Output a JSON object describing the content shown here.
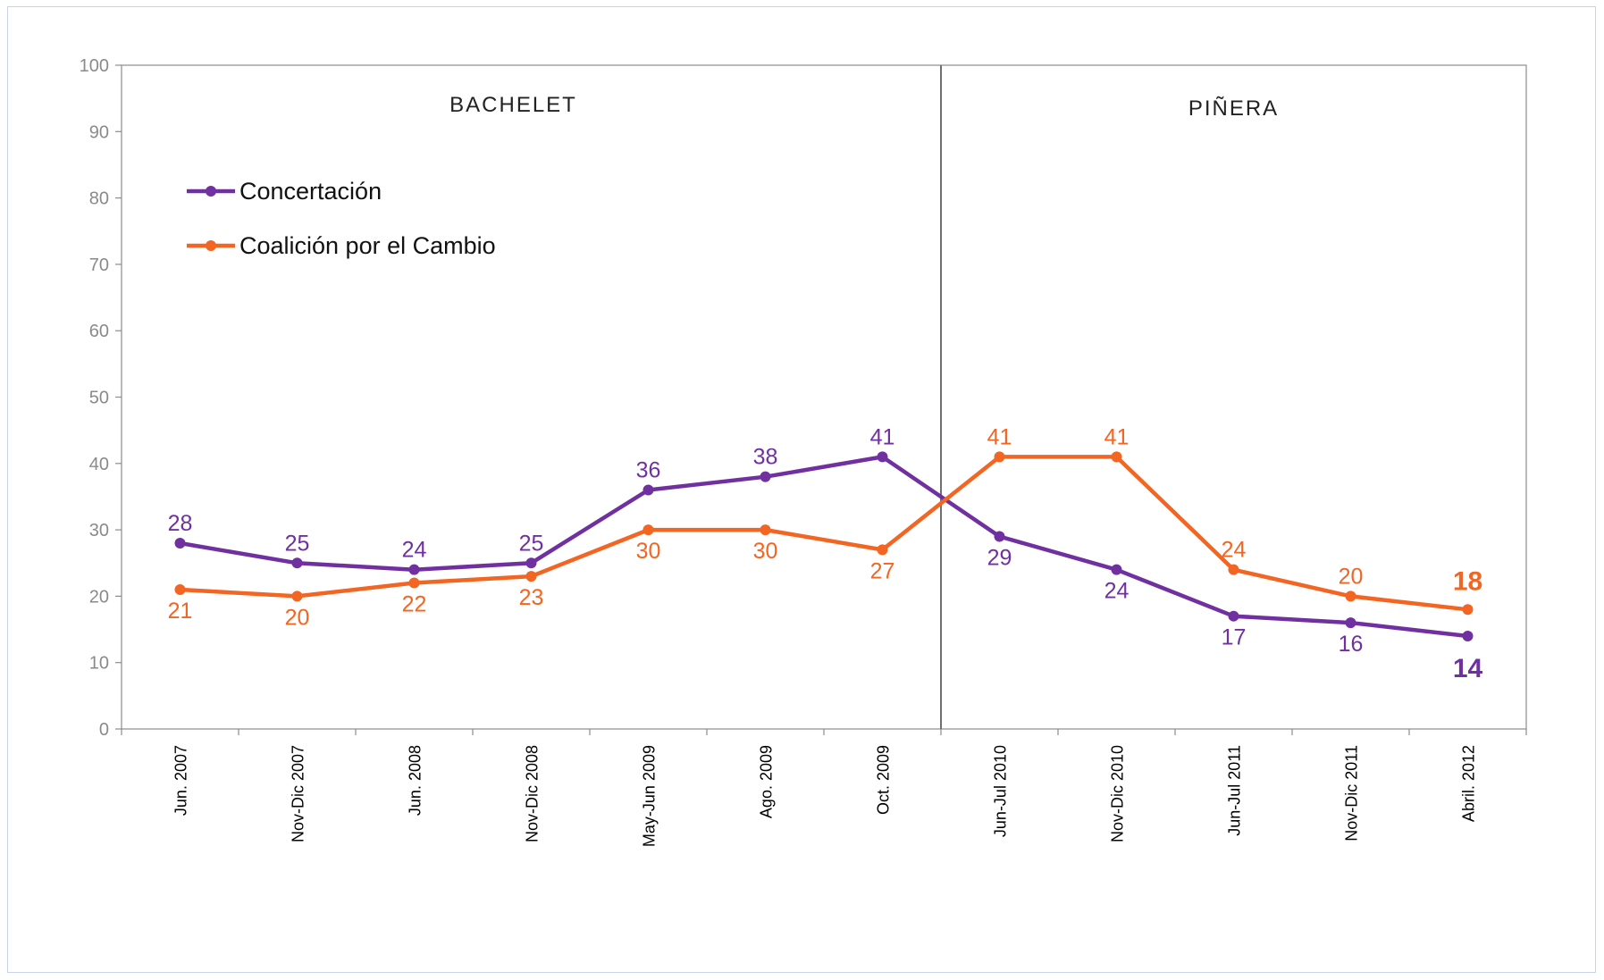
{
  "chart_data": {
    "type": "line",
    "title": "",
    "xlabel": "",
    "ylabel": "",
    "ylim": [
      0,
      100
    ],
    "yticks": [
      0,
      10,
      20,
      30,
      40,
      50,
      60,
      70,
      80,
      90,
      100
    ],
    "grid": false,
    "legend_position": "top-left",
    "categories": [
      "Jun. 2007",
      "Nov-Dic 2007",
      "Jun. 2008",
      "Nov-Dic 2008",
      "May-Jun 2009",
      "Ago. 2009",
      "Oct. 2009",
      "Jun-Jul 2010",
      "Nov-Dic 2010",
      "Jun-Jul 2011",
      "Nov-Dic 2011",
      "Abril. 2012"
    ],
    "periods": [
      {
        "label": "BACHELET",
        "from": "Jun. 2007",
        "to": "Oct. 2009"
      },
      {
        "label": "PIÑERA",
        "from": "Jun-Jul 2010",
        "to": "Abril. 2012"
      }
    ],
    "series": [
      {
        "name": "Concertación",
        "color": "#7030a0",
        "values": [
          28,
          25,
          24,
          25,
          36,
          38,
          41,
          29,
          24,
          17,
          16,
          14
        ],
        "labels": [
          "28",
          "25",
          "24",
          "25",
          "36",
          "38",
          "41",
          "29",
          "24",
          "17",
          "16",
          "14"
        ]
      },
      {
        "name": "Coalición por el Cambio",
        "color": "#f26522",
        "values": [
          21,
          20,
          22,
          23,
          30,
          30,
          27,
          41,
          41,
          24,
          20,
          18
        ],
        "labels": [
          "21",
          "20",
          "22",
          "23",
          "30",
          "30",
          "27",
          "41",
          "41",
          "24",
          "20",
          "18"
        ]
      }
    ]
  }
}
